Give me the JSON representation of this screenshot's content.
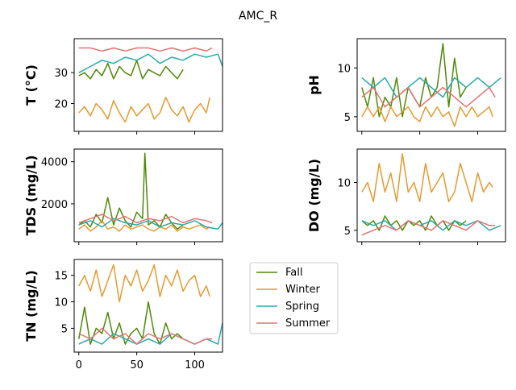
{
  "title": "AMC_R",
  "colors": {
    "Fall": "#4e8a08",
    "Winter": "#e69a31",
    "Spring": "#2aa9ab",
    "Summer": "#e07471"
  },
  "legend": {
    "placement": "center-left of lower-right cell",
    "entries": [
      "Fall",
      "Winter",
      "Spring",
      "Summer"
    ]
  },
  "chart_data": [
    {
      "type": "line",
      "panel": "T",
      "ylabel": "T  (°C)",
      "xlim": [
        -4,
        124
      ],
      "ylim": [
        11,
        41
      ],
      "yticks": [
        20,
        30
      ],
      "xticks": [
        0,
        50,
        100
      ],
      "show_xticklabels": false,
      "series": [
        {
          "name": "Fall",
          "x": [
            0,
            5,
            10,
            15,
            20,
            25,
            30,
            35,
            40,
            45,
            50,
            55,
            60,
            65,
            70,
            75,
            80,
            85,
            90
          ],
          "values": [
            29,
            30,
            28,
            31,
            29,
            33,
            28,
            32,
            30,
            29,
            34,
            28,
            31,
            30,
            29,
            32,
            30,
            28,
            31
          ]
        },
        {
          "name": "Winter",
          "x": [
            0,
            5,
            10,
            15,
            20,
            25,
            30,
            35,
            40,
            45,
            50,
            55,
            60,
            65,
            70,
            75,
            80,
            85,
            90,
            95,
            100,
            105,
            110,
            113
          ],
          "values": [
            17,
            19,
            16,
            20,
            18,
            15,
            21,
            17,
            14,
            19,
            16,
            18,
            20,
            15,
            17,
            22,
            18,
            16,
            19,
            14,
            18,
            20,
            17,
            22
          ]
        },
        {
          "name": "Spring",
          "x": [
            0,
            10,
            20,
            30,
            40,
            50,
            60,
            70,
            80,
            90,
            100,
            110,
            120,
            124
          ],
          "values": [
            30,
            32,
            34,
            33,
            35,
            34,
            36,
            33,
            35,
            34,
            36,
            35,
            36,
            32
          ]
        },
        {
          "name": "Summer",
          "x": [
            0,
            10,
            20,
            30,
            40,
            50,
            60,
            70,
            80,
            90,
            100,
            110,
            115
          ],
          "values": [
            38,
            38,
            37,
            38,
            37,
            38,
            38,
            37,
            38,
            37,
            38,
            37,
            38
          ]
        }
      ]
    },
    {
      "type": "line",
      "panel": "pH",
      "ylabel": "pH",
      "xlim": [
        -4,
        124
      ],
      "ylim": [
        3.5,
        13
      ],
      "yticks": [
        5,
        10
      ],
      "xticks": [
        0,
        50,
        100
      ],
      "show_xticklabels": false,
      "series": [
        {
          "name": "Fall",
          "x": [
            0,
            5,
            10,
            15,
            20,
            25,
            30,
            35,
            40,
            45,
            50,
            55,
            60,
            65,
            70,
            75,
            80,
            85,
            90
          ],
          "values": [
            8,
            6,
            9,
            5,
            7,
            6,
            9,
            5,
            8,
            7,
            6,
            9,
            7,
            8,
            12.5,
            6,
            11,
            7,
            8
          ]
        },
        {
          "name": "Winter",
          "x": [
            0,
            5,
            10,
            15,
            20,
            25,
            30,
            35,
            40,
            45,
            50,
            55,
            60,
            65,
            70,
            75,
            80,
            85,
            90,
            95,
            100,
            105,
            110,
            113
          ],
          "values": [
            5,
            6,
            5,
            6,
            4.5,
            6,
            5,
            5.5,
            6,
            5,
            4.5,
            6,
            5,
            6,
            5,
            5.5,
            4,
            6,
            5,
            6,
            5,
            5.5,
            6,
            5
          ]
        },
        {
          "name": "Spring",
          "x": [
            0,
            10,
            20,
            30,
            40,
            50,
            60,
            70,
            80,
            90,
            100,
            110,
            120
          ],
          "values": [
            9,
            8,
            9,
            7,
            8,
            9,
            8,
            7,
            9,
            8,
            9,
            8,
            9
          ]
        },
        {
          "name": "Summer",
          "x": [
            0,
            10,
            20,
            30,
            40,
            50,
            60,
            70,
            80,
            90,
            100,
            110,
            115
          ],
          "values": [
            7,
            8,
            6,
            7,
            8,
            6,
            7,
            8,
            7,
            6,
            7,
            8,
            7
          ]
        }
      ]
    },
    {
      "type": "line",
      "panel": "TDS",
      "ylabel": "TDS (mg/L)",
      "xlim": [
        -4,
        124
      ],
      "ylim": [
        200,
        4600
      ],
      "yticks": [
        2000,
        4000
      ],
      "xticks": [
        0,
        50,
        100
      ],
      "show_xticklabels": false,
      "series": [
        {
          "name": "Fall",
          "x": [
            0,
            5,
            10,
            15,
            20,
            25,
            30,
            35,
            40,
            45,
            50,
            55,
            57,
            60,
            65,
            70,
            75,
            80,
            85,
            90
          ],
          "values": [
            1000,
            1200,
            900,
            1500,
            1100,
            2300,
            1000,
            1800,
            1200,
            900,
            1600,
            1300,
            4400,
            1000,
            1200,
            900,
            1500,
            1100,
            800,
            1000
          ]
        },
        {
          "name": "Winter",
          "x": [
            0,
            5,
            10,
            15,
            20,
            25,
            30,
            35,
            40,
            45,
            50,
            55,
            60,
            65,
            70,
            75,
            80,
            85,
            90,
            95,
            100,
            105,
            110,
            113
          ],
          "values": [
            800,
            1000,
            700,
            900,
            1200,
            800,
            900,
            700,
            1000,
            800,
            900,
            1000,
            800,
            700,
            900,
            800,
            1000,
            700,
            900,
            800,
            900,
            1000,
            800,
            900
          ]
        },
        {
          "name": "Spring",
          "x": [
            0,
            10,
            20,
            30,
            40,
            50,
            60,
            70,
            80,
            90,
            100,
            110,
            120,
            124
          ],
          "values": [
            1000,
            1200,
            900,
            1300,
            1100,
            1000,
            1200,
            900,
            1100,
            1000,
            1200,
            900,
            800,
            1100
          ]
        },
        {
          "name": "Summer",
          "x": [
            0,
            10,
            20,
            30,
            40,
            50,
            60,
            70,
            80,
            90,
            100,
            110,
            115
          ],
          "values": [
            1100,
            1300,
            1500,
            1200,
            1400,
            1100,
            1300,
            1200,
            1400,
            1100,
            1300,
            1200,
            1100
          ]
        }
      ]
    },
    {
      "type": "line",
      "panel": "DO",
      "ylabel": "DO (mg/L)",
      "xlim": [
        -4,
        124
      ],
      "ylim": [
        3.8,
        13.5
      ],
      "yticks": [
        5,
        10
      ],
      "xticks": [
        0,
        50,
        100
      ],
      "show_xticklabels": false,
      "series": [
        {
          "name": "Fall",
          "x": [
            0,
            5,
            10,
            15,
            20,
            25,
            30,
            35,
            40,
            45,
            50,
            55,
            60,
            65,
            70,
            75,
            80,
            85,
            90
          ],
          "values": [
            6,
            5.5,
            6,
            5,
            6.5,
            5.5,
            6,
            5,
            6,
            5.5,
            6,
            5,
            6.5,
            5.5,
            6,
            5,
            6,
            5.5,
            6
          ]
        },
        {
          "name": "Winter",
          "x": [
            0,
            5,
            10,
            15,
            20,
            25,
            30,
            35,
            40,
            45,
            50,
            55,
            60,
            65,
            70,
            75,
            80,
            85,
            90,
            95,
            100,
            105,
            110,
            113
          ],
          "values": [
            9,
            10,
            8,
            12,
            9,
            11,
            8,
            13,
            9,
            10,
            8,
            12,
            9,
            10,
            11,
            8,
            9,
            12,
            10,
            8,
            11,
            9,
            10,
            9.5
          ]
        },
        {
          "name": "Spring",
          "x": [
            0,
            10,
            20,
            30,
            40,
            50,
            60,
            70,
            80,
            90,
            100,
            110,
            120
          ],
          "values": [
            6,
            5.5,
            6,
            5,
            6,
            5.5,
            6,
            5,
            6,
            5.5,
            6,
            5,
            5.5
          ]
        },
        {
          "name": "Summer",
          "x": [
            0,
            10,
            20,
            30,
            40,
            50,
            60,
            70,
            80,
            90,
            100,
            110,
            115
          ],
          "values": [
            4.5,
            5,
            5.5,
            5,
            6,
            5.5,
            5,
            6,
            5.5,
            5,
            6,
            5.5,
            5.5
          ]
        }
      ]
    },
    {
      "type": "line",
      "panel": "TN",
      "ylabel": "TN (mg/L)",
      "xlim": [
        -4,
        124
      ],
      "ylim": [
        0.5,
        18
      ],
      "yticks": [
        5,
        10,
        15
      ],
      "xticks": [
        0,
        50,
        100
      ],
      "show_xticklabels": true,
      "series": [
        {
          "name": "Fall",
          "x": [
            0,
            5,
            10,
            15,
            20,
            25,
            30,
            35,
            40,
            45,
            50,
            55,
            60,
            65,
            70,
            75,
            80,
            85,
            90
          ],
          "values": [
            3,
            9,
            2,
            5,
            4,
            8,
            3,
            6,
            2,
            4,
            5,
            3,
            10,
            4,
            2,
            6,
            3,
            4,
            3
          ]
        },
        {
          "name": "Winter",
          "x": [
            0,
            5,
            10,
            15,
            20,
            25,
            30,
            35,
            40,
            45,
            50,
            55,
            60,
            65,
            70,
            75,
            80,
            85,
            90,
            95,
            100,
            105,
            110,
            113
          ],
          "values": [
            13,
            15,
            12,
            16,
            11,
            14,
            17,
            10,
            15,
            13,
            16,
            12,
            14,
            17,
            11,
            15,
            13,
            16,
            12,
            14,
            15,
            11,
            13,
            11
          ]
        },
        {
          "name": "Spring",
          "x": [
            0,
            10,
            20,
            30,
            40,
            50,
            60,
            70,
            80,
            90,
            100,
            110,
            120,
            124
          ],
          "values": [
            2,
            3,
            2,
            4,
            3,
            2,
            3,
            2,
            4,
            3,
            2,
            3,
            2,
            6
          ]
        },
        {
          "name": "Summer",
          "x": [
            0,
            10,
            20,
            30,
            40,
            50,
            60,
            70,
            80,
            90,
            100,
            110,
            115
          ],
          "values": [
            4,
            3,
            5,
            3,
            4,
            2,
            4,
            3,
            4,
            3,
            2,
            3,
            3
          ]
        }
      ]
    }
  ]
}
